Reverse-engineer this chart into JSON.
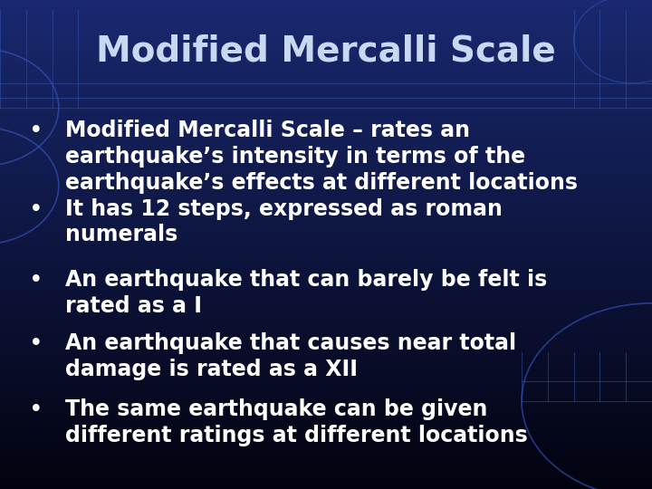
{
  "title": "Modified Mercalli Scale",
  "title_color": "#c8d8f0",
  "title_fontsize": 28,
  "bullet_points": [
    "Modified Mercalli Scale – rates an\nearthquake’s intensity in terms of the\nearthquake’s effects at different locations",
    "It has 12 steps, expressed as roman\nnumerals",
    "An earthquake that can barely be felt is\nrated as a I",
    "An earthquake that causes near total\ndamage is rated as a XII",
    "The same earthquake can be given\ndifferent ratings at different locations"
  ],
  "bullet_color": "#ffffff",
  "bullet_fontsize": 17,
  "fig_width": 7.2,
  "fig_height": 5.4,
  "dpi": 100
}
